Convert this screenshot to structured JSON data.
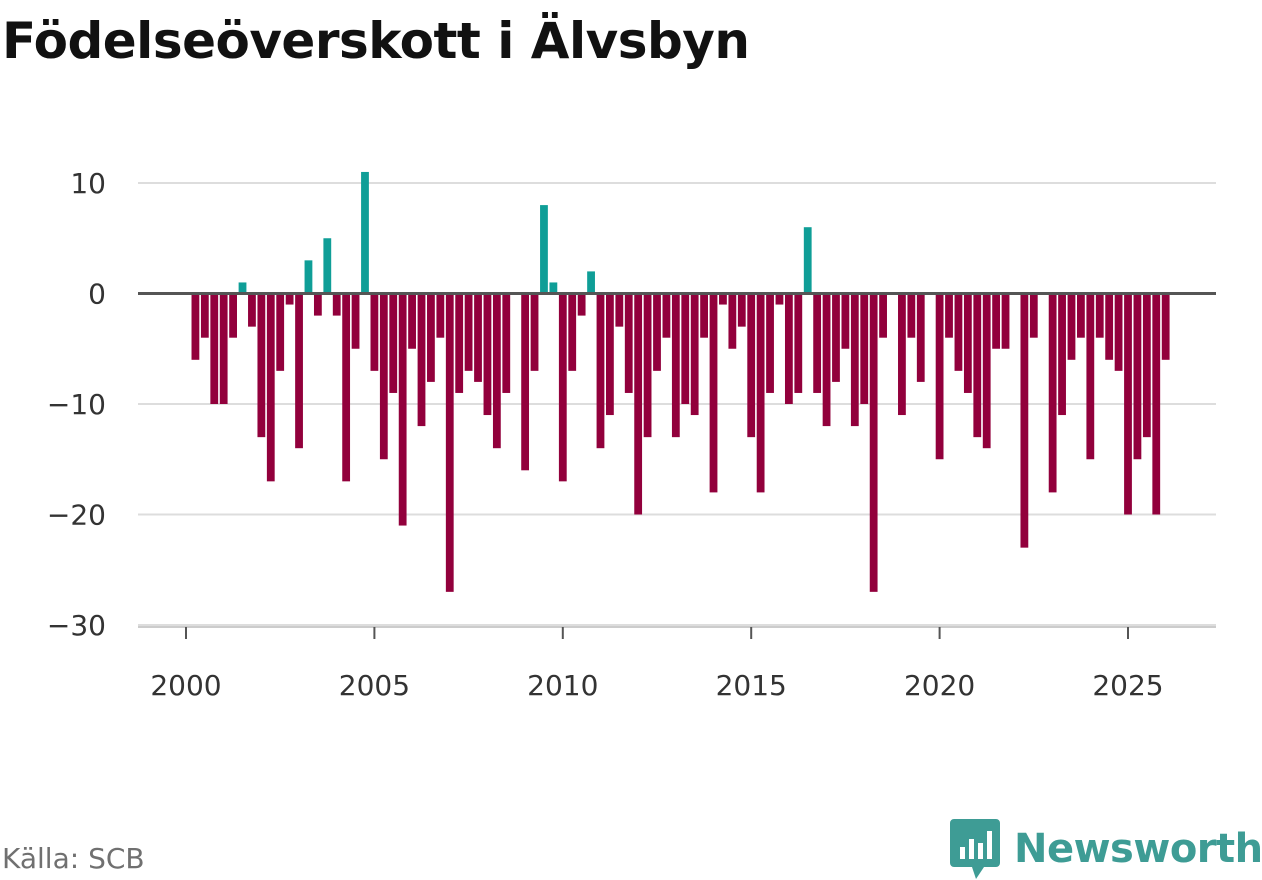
{
  "title": "Födelseöverskott i Älvsbyn",
  "source": "Källa: SCB",
  "brand": {
    "name": "Newsworthy",
    "icon": "newsworthy-logo-icon",
    "color": "#3e9c95"
  },
  "chart_data": {
    "type": "bar",
    "title": "Födelseöverskott i Älvsbyn",
    "xlabel": "",
    "ylabel": "",
    "x_start": 2000.25,
    "x_step": 0.25,
    "xlim": [
      1999.3,
      2027.4
    ],
    "ylim": [
      -30,
      12
    ],
    "x_ticks": [
      2000,
      2005,
      2010,
      2015,
      2020,
      2025
    ],
    "y_ticks": [
      10,
      0,
      -10,
      -20,
      -30
    ],
    "y_tick_labels": [
      "10",
      "0",
      "−10",
      "−20",
      "−30"
    ],
    "x_tick_labels": [
      "2000",
      "2005",
      "2010",
      "2015",
      "2020",
      "2025"
    ],
    "grid": true,
    "colors": {
      "positive": "#0f9e97",
      "negative": "#92003c",
      "grid": "#dddddd",
      "zero_line": "#555555"
    },
    "values": [
      -6,
      -4,
      -10,
      -10,
      -4,
      1,
      -3,
      -13,
      -17,
      -7,
      -1,
      -14,
      3,
      -2,
      5,
      -2,
      -17,
      -5,
      11,
      -7,
      -15,
      -9,
      -21,
      -5,
      -12,
      -8,
      -4,
      -27,
      -9,
      -7,
      -8,
      -11,
      -14,
      -9,
      0,
      -16,
      -7,
      8,
      1,
      -17,
      -7,
      -2,
      2,
      -14,
      -11,
      -3,
      -9,
      -20,
      -13,
      -7,
      -4,
      -13,
      -10,
      -11,
      -4,
      -18,
      -1,
      -5,
      -3,
      -13,
      -18,
      -9,
      -1,
      -10,
      -9,
      6,
      -9,
      -12,
      -8,
      -5,
      -12,
      -10,
      -27,
      -4,
      0,
      -11,
      -4,
      -8,
      0,
      -15,
      -4,
      -7,
      -9,
      -13,
      -14,
      -5,
      -5,
      0,
      -23,
      -4,
      0,
      -18,
      -11,
      -6,
      -4,
      -15,
      -4,
      -6,
      -7,
      -20,
      -15,
      -13,
      -20,
      -6
    ]
  }
}
